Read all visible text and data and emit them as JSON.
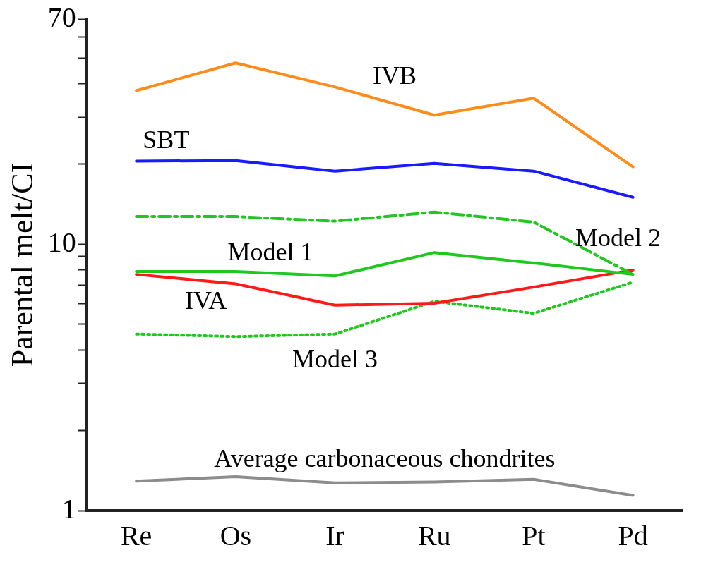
{
  "chart_data": {
    "type": "line",
    "ylabel": "Parental melt/CI",
    "categories": [
      "Re",
      "Os",
      "Ir",
      "Ru",
      "Pt",
      "Pd"
    ],
    "log": "y",
    "ylim": [
      1,
      70
    ],
    "yticks": [
      1,
      {
        "value": 2,
        "label": null
      },
      {
        "value": 3,
        "label": null
      },
      {
        "value": 4,
        "label": null
      },
      {
        "value": 5,
        "label": null
      },
      {
        "value": 6,
        "label": null
      },
      {
        "value": 7,
        "label": null
      },
      {
        "value": 8,
        "label": null
      },
      {
        "value": 9,
        "label": null
      },
      10,
      {
        "value": 20,
        "label": null
      },
      {
        "value": 30,
        "label": null
      },
      {
        "value": 40,
        "label": null
      },
      {
        "value": 50,
        "label": null
      },
      {
        "value": 60,
        "label": null
      },
      70
    ],
    "grid": false,
    "legend": false,
    "marker": "none",
    "series": [
      {
        "name": "IVB",
        "color": "#ff8c1a",
        "values": [
          37.7,
          47.9,
          38.9,
          30.5,
          35.3,
          19.5
        ]
      },
      {
        "name": "SBT",
        "color": "#1a1aff",
        "values": [
          20.5,
          20.6,
          18.8,
          20.1,
          18.8,
          15.0
        ]
      },
      {
        "name": "Model 2",
        "color": "#1ec81e",
        "line_style": "dashdot",
        "values": [
          12.7,
          12.7,
          12.2,
          13.2,
          12.1,
          7.7
        ]
      },
      {
        "name": "Model 1",
        "color": "#1ec81e",
        "values": [
          7.9,
          7.9,
          7.6,
          9.3,
          8.5,
          7.7
        ]
      },
      {
        "name": "IVA",
        "color": "#ff1a1a",
        "values": [
          7.7,
          7.1,
          5.9,
          6.0,
          6.9,
          8.0
        ]
      },
      {
        "name": "Model 3",
        "color": "#1ec81e",
        "line_style": "dotted",
        "values": [
          4.6,
          4.5,
          4.6,
          6.1,
          5.5,
          7.2
        ]
      },
      {
        "name": "Average carbonaceous chondrites",
        "color": "#8c8c8c",
        "values": [
          1.29,
          1.34,
          1.27,
          1.28,
          1.31,
          1.14
        ]
      }
    ]
  }
}
